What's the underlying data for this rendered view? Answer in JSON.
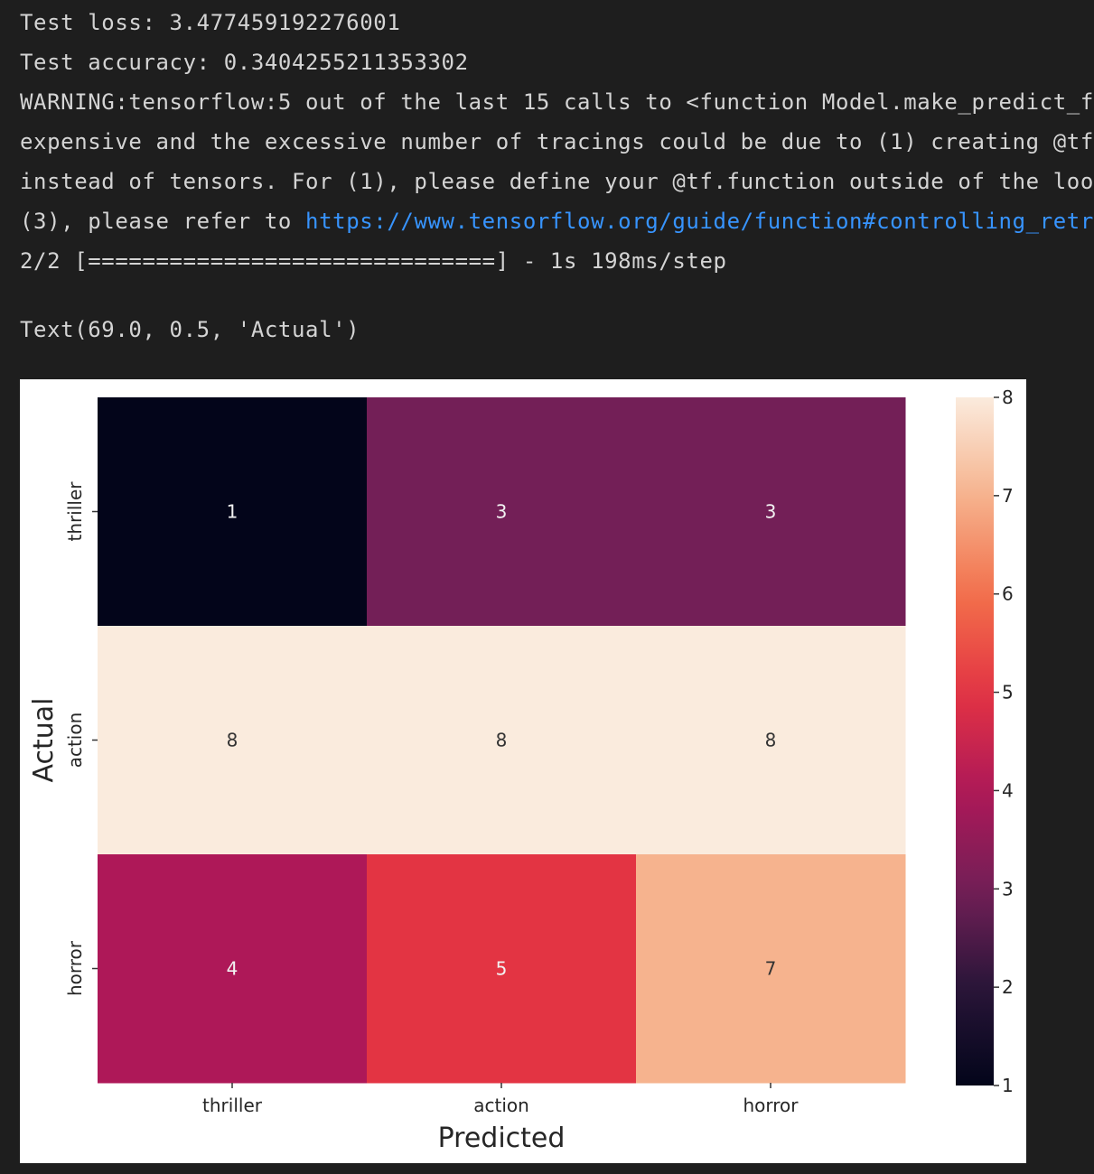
{
  "console": {
    "lines": [
      "Test loss: 3.477459192276001",
      "Test accuracy: 0.3404255211353302",
      "WARNING:tensorflow:5 out of the last 15 calls to <function Model.make_predict_f",
      "expensive and the excessive number of tracings could be due to (1) creating @tf",
      "instead of tensors. For (1), please define your @tf.function outside of the loo"
    ],
    "line6_prefix": "(3), please refer to ",
    "line6_link": "https://www.tensorflow.org/guide/function#controlling_retr",
    "progress_line": "2/2 [==============================] - 1s 198ms/step",
    "result_line": "Text(69.0, 0.5, 'Actual')"
  },
  "chart_data": {
    "type": "heatmap",
    "xlabel": "Predicted",
    "ylabel": "Actual",
    "x_categories": [
      "thriller",
      "action",
      "horror"
    ],
    "y_categories": [
      "thriller",
      "action",
      "horror"
    ],
    "values": [
      [
        1,
        3,
        3
      ],
      [
        8,
        8,
        8
      ],
      [
        4,
        5,
        7
      ]
    ],
    "colorbar": {
      "min": 1,
      "max": 8,
      "ticks": [
        1,
        2,
        3,
        4,
        5,
        6,
        7,
        8
      ],
      "colormap": "rocket"
    },
    "grid": false
  }
}
